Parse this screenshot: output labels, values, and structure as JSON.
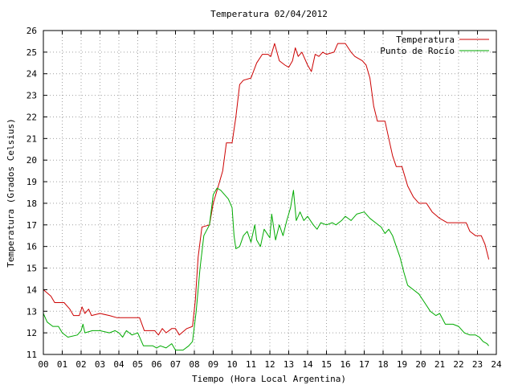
{
  "chart_data": {
    "type": "line",
    "title": "Temperatura 02/04/2012",
    "xlabel": "Tiempo (Hora Local Argentina)",
    "ylabel": "Temperatura (Grados Celsius)",
    "xlim": [
      0,
      24
    ],
    "ylim": [
      11,
      26
    ],
    "x_ticks": [
      "00",
      "01",
      "02",
      "03",
      "04",
      "05",
      "06",
      "07",
      "08",
      "09",
      "10",
      "11",
      "12",
      "13",
      "14",
      "15",
      "16",
      "17",
      "18",
      "19",
      "20",
      "21",
      "22",
      "23",
      "24"
    ],
    "y_ticks": [
      "11",
      "12",
      "13",
      "14",
      "15",
      "16",
      "17",
      "18",
      "19",
      "20",
      "21",
      "22",
      "23",
      "24",
      "25",
      "26"
    ],
    "grid": true,
    "legend_position": "top-right",
    "series": [
      {
        "name": "Temperatura",
        "color": "#cc0000",
        "points": [
          [
            0.0,
            14.0
          ],
          [
            0.4,
            13.7
          ],
          [
            0.6,
            13.4
          ],
          [
            1.1,
            13.4
          ],
          [
            1.4,
            13.1
          ],
          [
            1.6,
            12.8
          ],
          [
            1.9,
            12.8
          ],
          [
            2.05,
            13.2
          ],
          [
            2.2,
            12.9
          ],
          [
            2.4,
            13.1
          ],
          [
            2.55,
            12.8
          ],
          [
            3.0,
            12.9
          ],
          [
            3.5,
            12.8
          ],
          [
            3.9,
            12.7
          ],
          [
            4.5,
            12.7
          ],
          [
            5.1,
            12.7
          ],
          [
            5.35,
            12.1
          ],
          [
            5.9,
            12.1
          ],
          [
            6.1,
            11.9
          ],
          [
            6.3,
            12.2
          ],
          [
            6.5,
            12.0
          ],
          [
            6.8,
            12.2
          ],
          [
            7.0,
            12.2
          ],
          [
            7.2,
            11.9
          ],
          [
            7.6,
            12.2
          ],
          [
            7.9,
            12.3
          ],
          [
            8.05,
            13.5
          ],
          [
            8.2,
            15.5
          ],
          [
            8.4,
            16.9
          ],
          [
            8.8,
            17.0
          ],
          [
            9.0,
            18.0
          ],
          [
            9.3,
            18.9
          ],
          [
            9.5,
            19.5
          ],
          [
            9.7,
            20.8
          ],
          [
            10.0,
            20.8
          ],
          [
            10.2,
            22.0
          ],
          [
            10.4,
            23.5
          ],
          [
            10.6,
            23.7
          ],
          [
            11.0,
            23.8
          ],
          [
            11.3,
            24.5
          ],
          [
            11.6,
            24.9
          ],
          [
            11.9,
            24.9
          ],
          [
            12.05,
            24.8
          ],
          [
            12.25,
            25.4
          ],
          [
            12.5,
            24.6
          ],
          [
            12.8,
            24.4
          ],
          [
            13.0,
            24.3
          ],
          [
            13.2,
            24.6
          ],
          [
            13.35,
            25.2
          ],
          [
            13.5,
            24.8
          ],
          [
            13.7,
            25.0
          ],
          [
            14.0,
            24.4
          ],
          [
            14.2,
            24.1
          ],
          [
            14.4,
            24.9
          ],
          [
            14.6,
            24.8
          ],
          [
            14.8,
            25.0
          ],
          [
            15.0,
            24.9
          ],
          [
            15.4,
            25.0
          ],
          [
            15.6,
            25.4
          ],
          [
            16.0,
            25.4
          ],
          [
            16.3,
            25.0
          ],
          [
            16.5,
            24.8
          ],
          [
            16.9,
            24.6
          ],
          [
            17.1,
            24.4
          ],
          [
            17.3,
            23.8
          ],
          [
            17.5,
            22.5
          ],
          [
            17.7,
            21.8
          ],
          [
            18.1,
            21.8
          ],
          [
            18.3,
            21.0
          ],
          [
            18.5,
            20.2
          ],
          [
            18.7,
            19.7
          ],
          [
            19.0,
            19.7
          ],
          [
            19.3,
            18.8
          ],
          [
            19.6,
            18.3
          ],
          [
            19.9,
            18.0
          ],
          [
            20.3,
            18.0
          ],
          [
            20.6,
            17.6
          ],
          [
            21.0,
            17.3
          ],
          [
            21.4,
            17.1
          ],
          [
            22.1,
            17.1
          ],
          [
            22.4,
            17.1
          ],
          [
            22.6,
            16.7
          ],
          [
            22.9,
            16.5
          ],
          [
            23.2,
            16.5
          ],
          [
            23.4,
            16.1
          ],
          [
            23.6,
            15.4
          ]
        ]
      },
      {
        "name": "Punto de Rocío",
        "color": "#00aa00",
        "points": [
          [
            0.0,
            12.9
          ],
          [
            0.2,
            12.5
          ],
          [
            0.5,
            12.3
          ],
          [
            0.8,
            12.3
          ],
          [
            1.0,
            12.0
          ],
          [
            1.3,
            11.8
          ],
          [
            1.8,
            11.9
          ],
          [
            2.0,
            12.1
          ],
          [
            2.1,
            12.4
          ],
          [
            2.2,
            12.0
          ],
          [
            2.6,
            12.1
          ],
          [
            3.0,
            12.1
          ],
          [
            3.5,
            12.0
          ],
          [
            3.8,
            12.1
          ],
          [
            4.0,
            12.0
          ],
          [
            4.2,
            11.8
          ],
          [
            4.4,
            12.1
          ],
          [
            4.7,
            11.9
          ],
          [
            5.0,
            12.0
          ],
          [
            5.3,
            11.4
          ],
          [
            5.8,
            11.4
          ],
          [
            6.0,
            11.3
          ],
          [
            6.2,
            11.4
          ],
          [
            6.5,
            11.3
          ],
          [
            6.8,
            11.5
          ],
          [
            7.0,
            11.2
          ],
          [
            7.4,
            11.2
          ],
          [
            7.7,
            11.4
          ],
          [
            7.9,
            11.6
          ],
          [
            8.1,
            13.0
          ],
          [
            8.3,
            15.0
          ],
          [
            8.5,
            16.5
          ],
          [
            8.8,
            17.0
          ],
          [
            9.0,
            18.4
          ],
          [
            9.2,
            18.7
          ],
          [
            9.4,
            18.6
          ],
          [
            9.6,
            18.4
          ],
          [
            9.8,
            18.2
          ],
          [
            10.0,
            17.8
          ],
          [
            10.1,
            16.5
          ],
          [
            10.2,
            15.9
          ],
          [
            10.4,
            16.0
          ],
          [
            10.6,
            16.5
          ],
          [
            10.8,
            16.7
          ],
          [
            11.0,
            16.2
          ],
          [
            11.2,
            17.0
          ],
          [
            11.3,
            16.3
          ],
          [
            11.5,
            16.0
          ],
          [
            11.7,
            16.8
          ],
          [
            12.0,
            16.4
          ],
          [
            12.1,
            17.5
          ],
          [
            12.3,
            16.3
          ],
          [
            12.5,
            17.0
          ],
          [
            12.7,
            16.5
          ],
          [
            12.9,
            17.2
          ],
          [
            13.1,
            17.8
          ],
          [
            13.25,
            18.6
          ],
          [
            13.4,
            17.2
          ],
          [
            13.6,
            17.6
          ],
          [
            13.8,
            17.2
          ],
          [
            14.0,
            17.4
          ],
          [
            14.3,
            17.0
          ],
          [
            14.5,
            16.8
          ],
          [
            14.7,
            17.1
          ],
          [
            15.0,
            17.0
          ],
          [
            15.3,
            17.1
          ],
          [
            15.5,
            17.0
          ],
          [
            15.8,
            17.2
          ],
          [
            16.0,
            17.4
          ],
          [
            16.3,
            17.2
          ],
          [
            16.6,
            17.5
          ],
          [
            17.0,
            17.6
          ],
          [
            17.3,
            17.3
          ],
          [
            17.6,
            17.1
          ],
          [
            17.9,
            16.9
          ],
          [
            18.1,
            16.6
          ],
          [
            18.3,
            16.8
          ],
          [
            18.5,
            16.5
          ],
          [
            18.7,
            16.0
          ],
          [
            18.9,
            15.5
          ],
          [
            19.1,
            14.8
          ],
          [
            19.3,
            14.2
          ],
          [
            19.6,
            14.0
          ],
          [
            19.9,
            13.8
          ],
          [
            20.2,
            13.4
          ],
          [
            20.5,
            13.0
          ],
          [
            20.8,
            12.8
          ],
          [
            21.0,
            12.9
          ],
          [
            21.3,
            12.4
          ],
          [
            21.7,
            12.4
          ],
          [
            22.0,
            12.3
          ],
          [
            22.3,
            12.0
          ],
          [
            22.6,
            11.9
          ],
          [
            22.9,
            11.9
          ],
          [
            23.1,
            11.8
          ],
          [
            23.3,
            11.6
          ],
          [
            23.5,
            11.5
          ],
          [
            23.6,
            11.4
          ]
        ]
      }
    ]
  }
}
